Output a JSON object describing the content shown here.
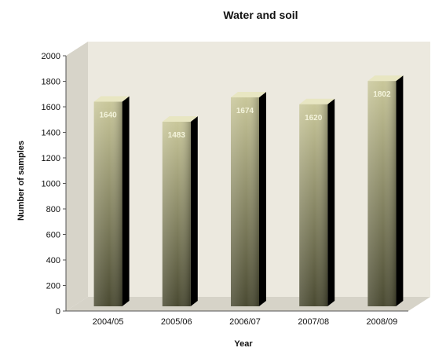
{
  "chart_data": {
    "type": "bar",
    "title": "Water and soil",
    "xlabel": "Year",
    "ylabel": "Number of samples",
    "categories": [
      "2004/05",
      "2005/06",
      "2006/07",
      "2007/08",
      "2008/09"
    ],
    "values": [
      1640,
      1483,
      1674,
      1620,
      1802
    ],
    "data_labels": [
      "1640",
      "1483",
      "1674",
      "1620",
      "1802"
    ],
    "ylim": [
      0,
      2000
    ],
    "yticks": [
      0,
      200,
      400,
      600,
      800,
      1000,
      1200,
      1400,
      1600,
      1800,
      2000
    ],
    "grid": false,
    "legend": "none",
    "style": "3d-bars",
    "colors": {
      "bar_light": "#c9c79a",
      "bar_dark": "#4a4a32",
      "bar_side": "#000000",
      "bar_top": "#e8e6c2",
      "back_wall": "#ece9df",
      "side_wall": "#d7d4c9",
      "floor": "#d6d3c8"
    }
  }
}
